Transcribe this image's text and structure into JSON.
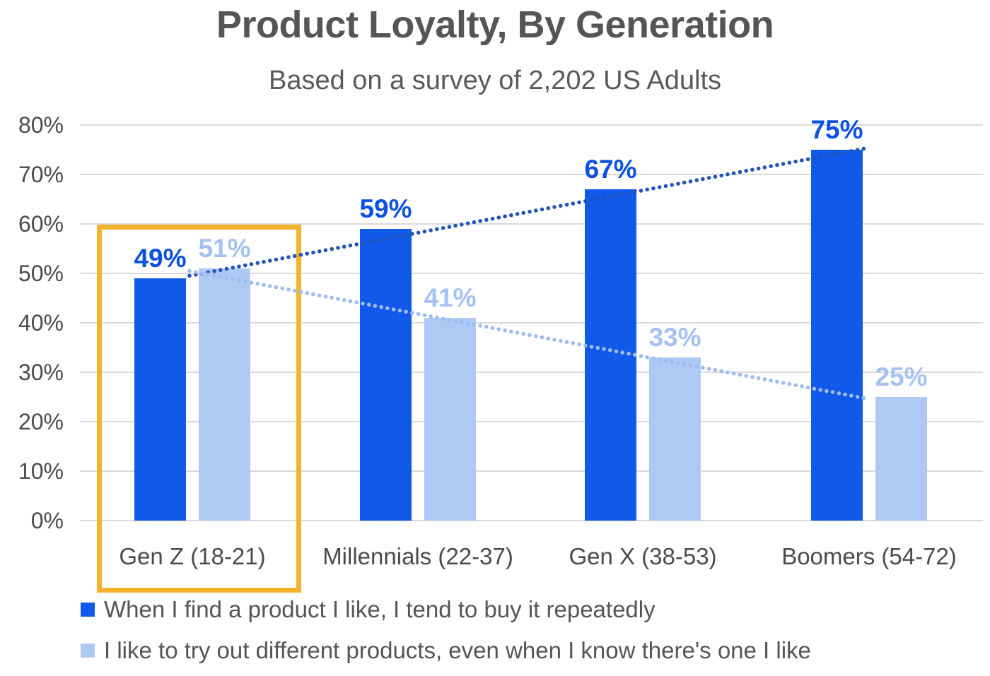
{
  "title": "Product Loyalty, By Generation",
  "subtitle": "Based on a survey of 2,202 US Adults",
  "chart_data": {
    "type": "bar",
    "title": "Product Loyalty, By Generation",
    "subtitle": "Based on a survey of 2,202 US Adults",
    "categories": [
      "Gen Z (18-21)",
      "Millennials (22-37)",
      "Gen X (38-53)",
      "Boomers (54-72)"
    ],
    "series": [
      {
        "name": "When I find a product I like, I tend to buy it repeatedly",
        "values": [
          49,
          59,
          67,
          75
        ],
        "bar_color": "#1159E8",
        "label_color": "#0B51E0",
        "trend_color": "#2153BA"
      },
      {
        "name": "I like to try out different products, even when I know there's one I like",
        "values": [
          51,
          41,
          33,
          25
        ],
        "bar_color": "#AFC9F5",
        "label_color": "#A5C1F3",
        "trend_color": "#9EBCEF"
      }
    ],
    "value_suffix": "%",
    "xlabel": "",
    "ylabel": "",
    "ylim": [
      0,
      80
    ],
    "ytick_step": 10,
    "ytick_labels": [
      "0%",
      "10%",
      "20%",
      "30%",
      "40%",
      "50%",
      "60%",
      "70%",
      "80%"
    ],
    "grid": true,
    "grid_color": "#D9D9D9",
    "trendlines": "dotted linear trendline per series",
    "legend_position": "bottom-left",
    "highlight": {
      "category": "Gen Z (18-21)",
      "box_color": "#F3B42C"
    }
  }
}
